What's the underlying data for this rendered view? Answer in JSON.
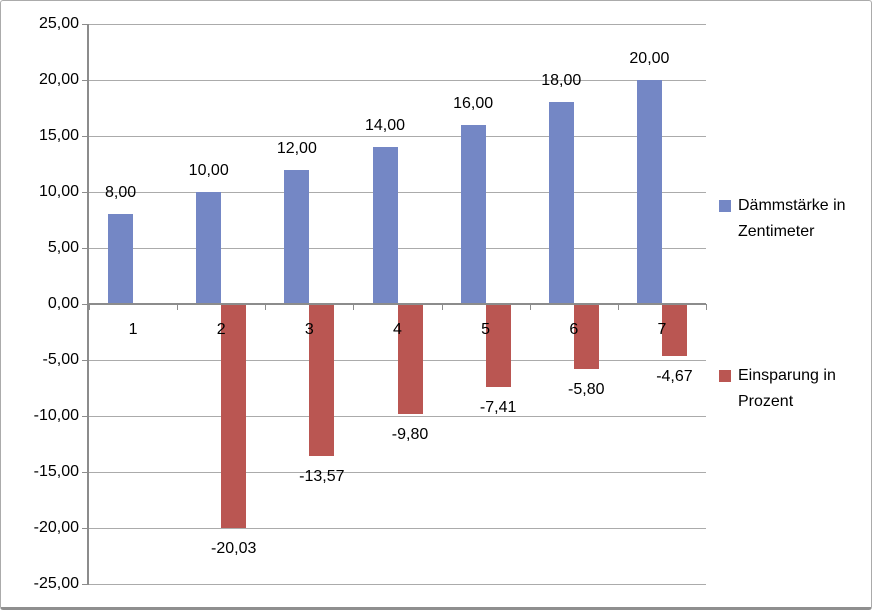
{
  "chart_data": {
    "type": "bar",
    "title": "",
    "xlabel": "",
    "ylabel": "",
    "categories": [
      "1",
      "2",
      "3",
      "4",
      "5",
      "6",
      "7"
    ],
    "series": [
      {
        "name": "Dämmstärke in Zentimeter",
        "color": "#7487C5",
        "values": [
          8.0,
          10.0,
          12.0,
          14.0,
          16.0,
          18.0,
          20.0
        ],
        "data_labels": [
          "8,00",
          "10,00",
          "12,00",
          "14,00",
          "16,00",
          "18,00",
          "20,00"
        ]
      },
      {
        "name": "Einsparung in Prozent",
        "color": "#BA5652",
        "values": [
          null,
          -20.03,
          -13.57,
          -9.8,
          -7.41,
          -5.8,
          -4.67
        ],
        "data_labels": [
          null,
          "-20,03",
          "-13,57",
          "-9,80",
          "-7,41",
          "-5,80",
          "-4,67"
        ]
      }
    ],
    "ylim": [
      -25,
      25
    ],
    "ytick_step": 5,
    "ytick_labels": [
      "25,00",
      "20,00",
      "15,00",
      "10,00",
      "5,00",
      "0,00",
      "-5,00",
      "-10,00",
      "-15,00",
      "-20,00",
      "-25,00"
    ],
    "grid": true,
    "legend_position": "right"
  },
  "colors": {
    "background": "#FFFFFF",
    "border": "#ABABAB",
    "grid": "#ABABAB",
    "axis": "#8C8C8C",
    "text": "#000000"
  }
}
